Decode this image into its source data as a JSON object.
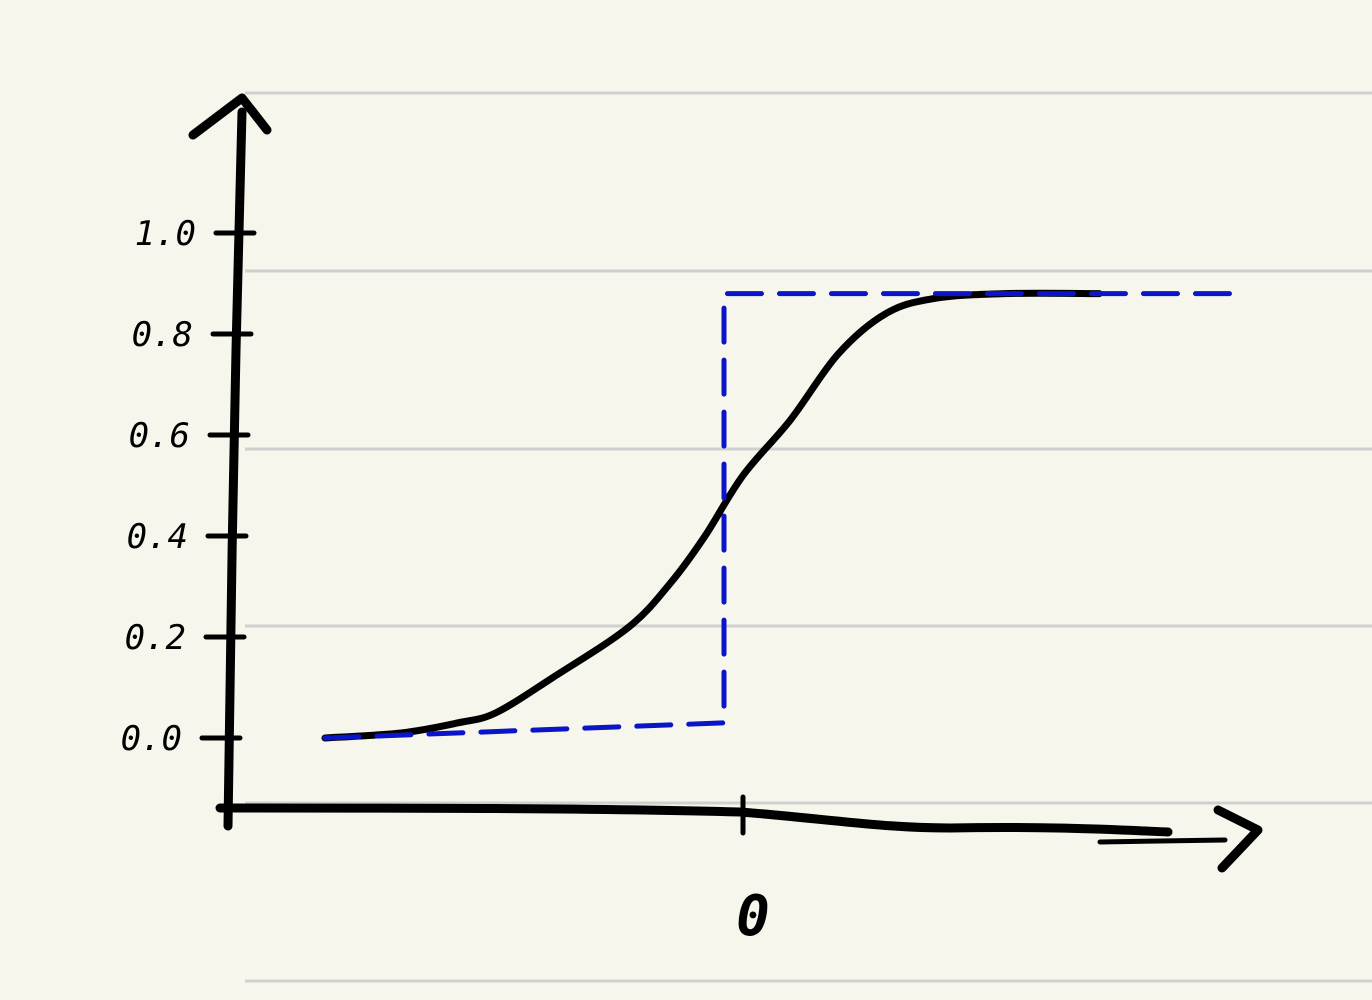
{
  "chart_data": {
    "type": "line",
    "title": "",
    "xlabel": "",
    "ylabel": "",
    "ylim": [
      0,
      1.0
    ],
    "xlim": [
      -1,
      1
    ],
    "grid": false,
    "y_ticks": [
      {
        "value": 0.0,
        "label": "0.0"
      },
      {
        "value": 0.2,
        "label": "0.2"
      },
      {
        "value": 0.4,
        "label": "0.4"
      },
      {
        "value": 0.6,
        "label": "0.6"
      },
      {
        "value": 0.8,
        "label": "0.8"
      },
      {
        "value": 1.0,
        "label": "1.0"
      }
    ],
    "x_ticks": [
      {
        "value": 0,
        "label": "0"
      }
    ],
    "series": [
      {
        "style": "solid",
        "color": "#000000",
        "x": [
          -0.88,
          -0.72,
          -0.6,
          -0.52,
          -0.4,
          -0.24,
          -0.15,
          -0.08,
          0.0,
          0.1,
          0.2,
          0.3,
          0.4,
          0.55,
          0.75
        ],
        "y": [
          0.0,
          0.01,
          0.03,
          0.05,
          0.12,
          0.22,
          0.31,
          0.4,
          0.52,
          0.63,
          0.76,
          0.84,
          0.87,
          0.88,
          0.88
        ]
      },
      {
        "style": "dashed",
        "color": "#0a14c8",
        "x": [
          -0.88,
          -0.04,
          -0.04,
          0.0,
          0.0,
          1.04
        ],
        "y": [
          0.0,
          0.03,
          0.88,
          0.88,
          0.88,
          0.88
        ]
      }
    ]
  }
}
